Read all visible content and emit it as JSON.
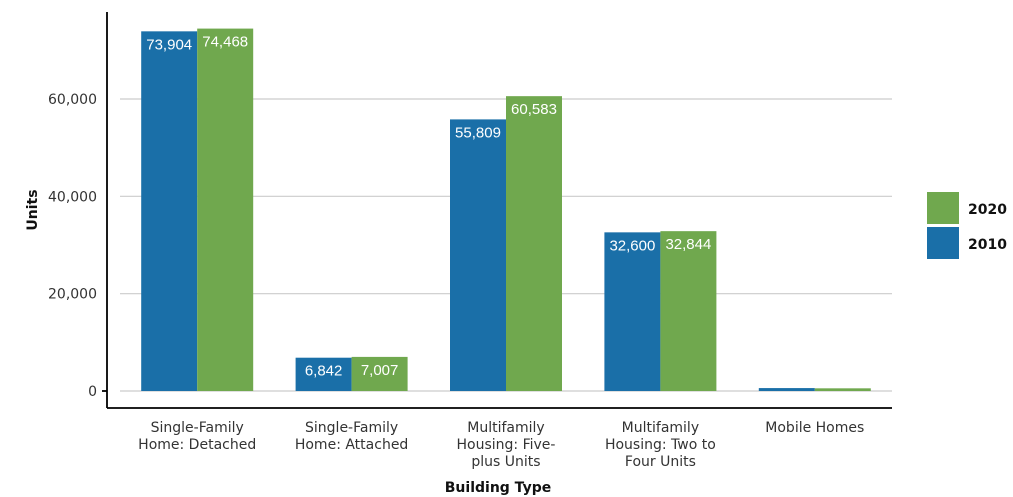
{
  "chart_data": {
    "type": "bar",
    "title": "",
    "xlabel": "Building Type",
    "ylabel": "Units",
    "ylim": [
      0,
      75000
    ],
    "yticks": [
      0,
      20000,
      40000,
      60000
    ],
    "ytick_labels": [
      "0",
      "20,000",
      "40,000",
      "60,000"
    ],
    "categories": [
      [
        "Single-Family",
        "Home: Detached"
      ],
      [
        "Single-Family",
        "Home: Attached"
      ],
      [
        "Multifamily",
        "Housing: Five-",
        "plus Units"
      ],
      [
        "Multifamily",
        "Housing: Two to",
        "Four Units"
      ],
      [
        "Mobile Homes"
      ]
    ],
    "series": [
      {
        "name": "2010",
        "color": "#1a6fa8",
        "values": [
          73904,
          6842,
          55809,
          32600,
          600
        ],
        "labels": [
          "73,904",
          "6,842",
          "55,809",
          "32,600",
          ""
        ]
      },
      {
        "name": "2020",
        "color": "#70a84e",
        "values": [
          74468,
          7007,
          60583,
          32844,
          550
        ],
        "labels": [
          "74,468",
          "7,007",
          "60,583",
          "32,844",
          ""
        ]
      }
    ],
    "grid": true,
    "legend": {
      "position": "right",
      "order": [
        "2020",
        "2010"
      ]
    }
  }
}
